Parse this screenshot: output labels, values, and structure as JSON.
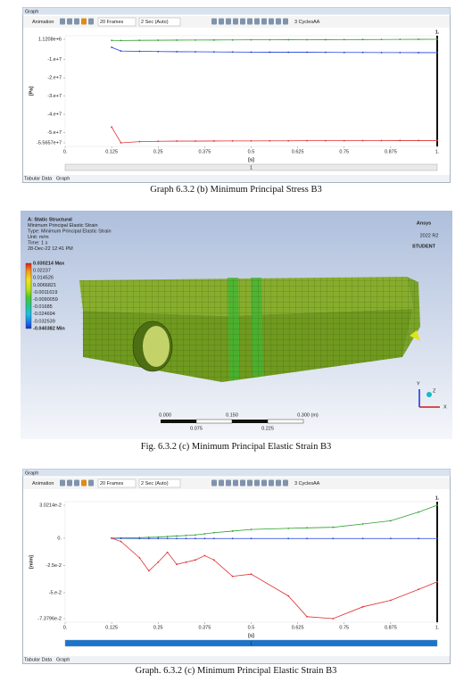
{
  "graph1": {
    "window_title": "Graph",
    "toolbar": [
      "Animation",
      "20 Frames",
      "2 Sec (Auto)",
      "3 Cycles",
      "AA"
    ],
    "y_label": "[Pa]",
    "x_label": "[s]",
    "marker": "1.",
    "xlim": [
      0,
      1
    ],
    "xticks": [
      {
        "value": 0,
        "label": "0."
      },
      0.125,
      0.25,
      0.375,
      0.5,
      0.625,
      0.75,
      0.875,
      {
        "value": 1,
        "label": "1."
      }
    ],
    "ylim": [
      -55657000,
      1120800
    ],
    "yticks": [
      {
        "value": 1120800,
        "label": "1.1208e+6"
      },
      {
        "value": -10000000,
        "label": "-1.e+7"
      },
      {
        "value": -20000000,
        "label": "-2.e+7"
      },
      {
        "value": -30000000,
        "label": "-3.e+7"
      },
      {
        "value": -40000000,
        "label": "-4.e+7"
      },
      {
        "value": -50000000,
        "label": "-5.e+7"
      },
      {
        "value": -55657000,
        "label": "-5.5657e+7"
      }
    ],
    "series": [
      {
        "color": "#2ca02c",
        "x": [
          0.125,
          0.15,
          0.2,
          0.25,
          0.3,
          0.35,
          0.4,
          0.45,
          0.5,
          0.55,
          0.6,
          0.65,
          0.7,
          0.75,
          0.8,
          0.85,
          0.9,
          0.95,
          1
        ],
        "values": [
          500000,
          450000,
          550000,
          600000,
          650000,
          700000,
          720000,
          750000,
          800000,
          820000,
          850000,
          880000,
          900000,
          950000,
          980000,
          1000000,
          1050000,
          1080000,
          1120800
        ]
      },
      {
        "color": "#1f3fd6",
        "x": [
          0.125,
          0.15,
          0.2,
          0.25,
          0.3,
          0.35,
          0.4,
          0.45,
          0.5,
          0.55,
          0.6,
          0.65,
          0.7,
          0.75,
          0.8,
          0.85,
          0.9,
          0.95,
          1
        ],
        "values": [
          -3300000,
          -5300000,
          -5500000,
          -5600000,
          -5700000,
          -5750000,
          -5800000,
          -5850000,
          -5900000,
          -5950000,
          -6000000,
          -6000000,
          -6050000,
          -6100000,
          -6100000,
          -6150000,
          -6150000,
          -6200000,
          -6200000
        ]
      },
      {
        "color": "#e03030",
        "x": [
          0.125,
          0.15,
          0.2,
          0.25,
          0.3,
          0.35,
          0.4,
          0.45,
          0.5,
          0.55,
          0.6,
          0.65,
          0.7,
          0.75,
          0.8,
          0.85,
          0.9,
          0.95,
          1
        ],
        "values": [
          -47000000,
          -55657000,
          -55000000,
          -54800000,
          -54700000,
          -54700000,
          -54650000,
          -54600000,
          -54600000,
          -54550000,
          -54550000,
          -54500000,
          -54500000,
          -54500000,
          -54450000,
          -54450000,
          -54400000,
          -54400000,
          -54400000
        ]
      }
    ],
    "slider_label": "1",
    "tabs": [
      "Tabular Data",
      "Graph"
    ]
  },
  "caption1": "Graph 6.3.2 (b) Minimum Principal Stress B3",
  "figure": {
    "header": [
      "A: Static Structural",
      "Minimum Principal Elastic Strain",
      "Type: Minimum Principal Elastic Strain",
      "Unit: m/m",
      "Time: 1 s",
      "28-Dec-22 12:41 PM"
    ],
    "legend": [
      "0.030214 Max",
      "0.02237",
      "0.014526",
      "0.0066821",
      "-0.0011619",
      "-0.0090059",
      "-0.01685",
      "-0.024694",
      "-0.032539",
      "-0.040382 Min"
    ],
    "logo": {
      "brand": "Ansys",
      "version": "2022 R2",
      "edition": "STUDENT"
    },
    "scale_top": [
      "0.000",
      "0.150",
      "0.300 (m)"
    ],
    "scale_bottom": [
      "0.075",
      "0.225"
    ],
    "axes": [
      "Y",
      "Z",
      "X"
    ]
  },
  "caption2": "Fig. 6.3.2 (c) Minimum Principal Elastic Strain B3",
  "graph2": {
    "window_title": "Graph",
    "toolbar": [
      "Animation",
      "20 Frames",
      "2 Sec (Auto)",
      "3 Cycles",
      "AA"
    ],
    "y_label": "[m/m]",
    "x_label": "[s]",
    "marker": "1.",
    "xlim": [
      0,
      1
    ],
    "xticks": [
      {
        "value": 0,
        "label": "0."
      },
      0.125,
      0.25,
      0.375,
      0.5,
      0.625,
      0.75,
      0.875,
      {
        "value": 1,
        "label": "1."
      }
    ],
    "ylim": [
      -0.073796,
      0.030214
    ],
    "yticks": [
      {
        "value": 0.030214,
        "label": "3.0214e-2"
      },
      {
        "value": 0,
        "label": "0."
      },
      {
        "value": -0.025,
        "label": "-2.5e-2"
      },
      {
        "value": -0.05,
        "label": "-5.e-2"
      },
      {
        "value": -0.073796,
        "label": "-7.3796e-2"
      }
    ],
    "series": [
      {
        "color": "#2ca02c",
        "x": [
          0.125,
          0.15,
          0.2,
          0.225,
          0.25,
          0.275,
          0.3,
          0.325,
          0.35,
          0.375,
          0.4,
          0.45,
          0.5,
          0.6,
          0.65,
          0.72,
          0.8,
          0.875,
          0.95,
          1
        ],
        "values": [
          0,
          0.0002,
          0.0005,
          0.0008,
          0.001,
          0.0015,
          0.002,
          0.0025,
          0.003,
          0.004,
          0.005,
          0.0065,
          0.008,
          0.009,
          0.0095,
          0.01,
          0.013,
          0.016,
          0.024,
          0.030214
        ]
      },
      {
        "color": "#1f3fd6",
        "x": [
          0.125,
          0.15,
          0.2,
          0.225,
          0.25,
          0.275,
          0.3,
          0.325,
          0.35,
          0.375,
          0.4,
          0.45,
          0.5,
          0.6,
          0.65,
          0.72,
          0.8,
          0.875,
          0.95,
          1
        ],
        "values": [
          0,
          -0.0002,
          -0.0003,
          -0.0003,
          -0.0003,
          -0.0003,
          -0.0003,
          -0.0003,
          -0.0003,
          -0.0003,
          -0.0003,
          -0.0003,
          -0.0003,
          -0.0003,
          -0.0003,
          -0.0003,
          -0.0003,
          -0.0003,
          -0.0003,
          -0.0003
        ]
      },
      {
        "color": "#e03030",
        "x": [
          0.125,
          0.15,
          0.2,
          0.225,
          0.25,
          0.275,
          0.3,
          0.325,
          0.35,
          0.375,
          0.4,
          0.45,
          0.5,
          0.6,
          0.65,
          0.72,
          0.8,
          0.875,
          0.95,
          1
        ],
        "values": [
          0,
          -0.003,
          -0.018,
          -0.03,
          -0.022,
          -0.013,
          -0.024,
          -0.022,
          -0.02,
          -0.016,
          -0.02,
          -0.035,
          -0.033,
          -0.053,
          -0.072,
          -0.073796,
          -0.063,
          -0.057,
          -0.047,
          -0.04
        ]
      }
    ],
    "slider_label": "1",
    "tabs": [
      "Tabular Data",
      "Graph"
    ]
  },
  "caption3": "Graph. 6.3.2 (c) Minimum Principal Elastic Strain B3"
}
